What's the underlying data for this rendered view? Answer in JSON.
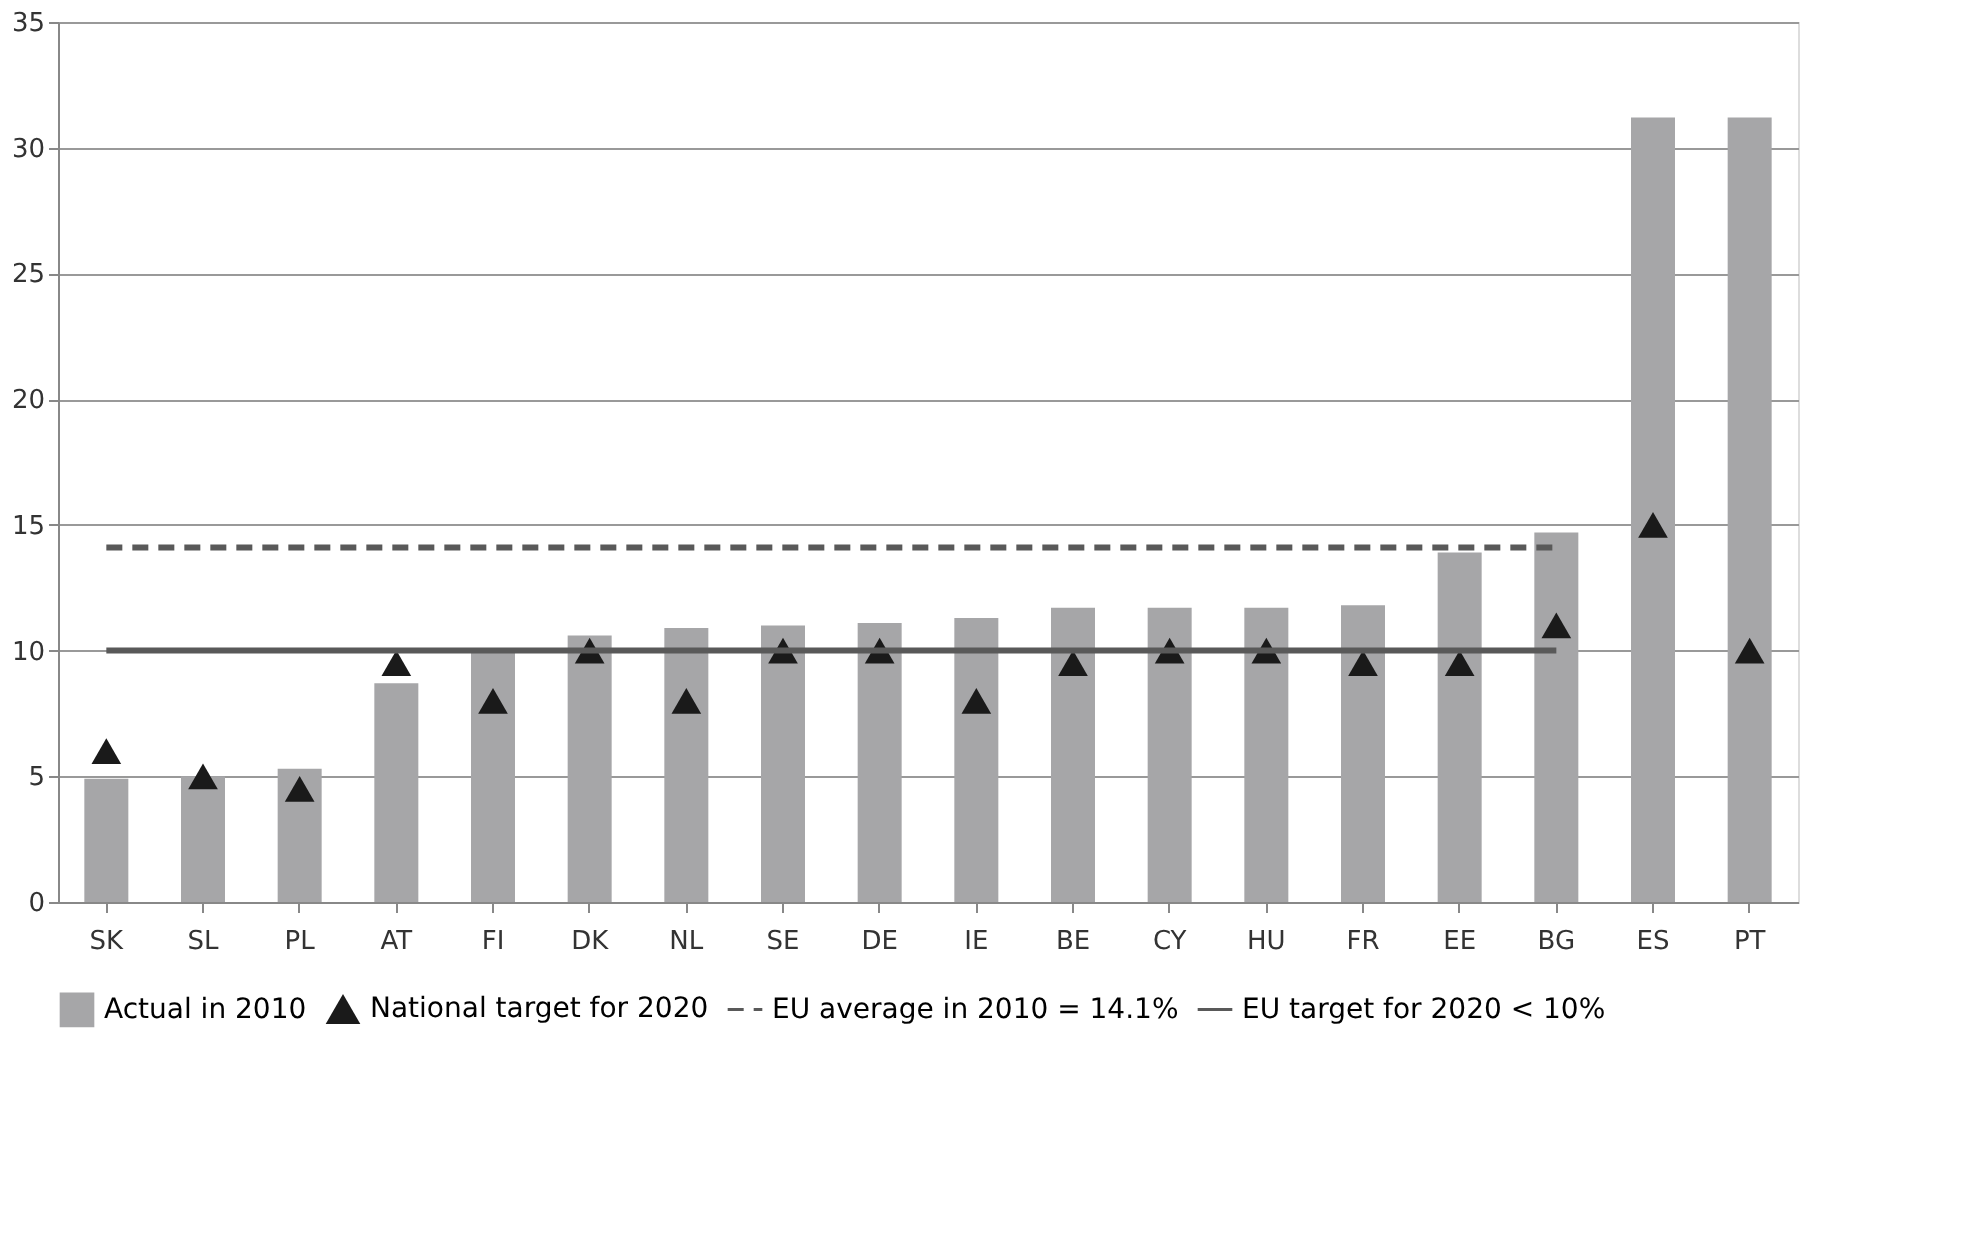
{
  "chart_data": {
    "type": "bar",
    "categories": [
      "SK",
      "SL",
      "PL",
      "AT",
      "FI",
      "DK",
      "NL",
      "SE",
      "DE",
      "IE",
      "BE",
      "CY",
      "HU",
      "FR",
      "EE",
      "BG",
      "ES",
      "PT"
    ],
    "series": [
      {
        "name": "Actual in 2010",
        "type": "bar",
        "color": "#a6a6a8",
        "values": [
          4.9,
          5.0,
          5.3,
          8.7,
          10.0,
          10.6,
          10.9,
          11.0,
          11.1,
          11.3,
          11.7,
          11.7,
          11.7,
          11.8,
          13.9,
          14.7,
          31.2,
          31.2
        ]
      },
      {
        "name": "National target for 2020",
        "type": "scatter",
        "marker": "triangle",
        "color": "#1a1a1a",
        "values": [
          6,
          5,
          4.5,
          9.5,
          8,
          10,
          8,
          10,
          10,
          8,
          9.5,
          10,
          10,
          9.5,
          9.5,
          11,
          15,
          10
        ]
      },
      {
        "name": "EU average in 2010 = 14.1%",
        "type": "line",
        "line_style": "dashed",
        "color": "#595959",
        "values": [
          14.1,
          14.1,
          14.1,
          14.1,
          14.1,
          14.1,
          14.1,
          14.1,
          14.1,
          14.1,
          14.1,
          14.1,
          14.1,
          14.1,
          14.1,
          14.1,
          null,
          null
        ]
      },
      {
        "name": "EU target for 2020 < 10%",
        "type": "line",
        "line_style": "solid",
        "color": "#595959",
        "values": [
          10,
          10,
          10,
          10,
          10,
          10,
          10,
          10,
          10,
          10,
          10,
          10,
          10,
          10,
          10,
          10,
          null,
          null
        ]
      }
    ],
    "ylim": [
      0,
      35
    ],
    "yticks": [
      0,
      5,
      10,
      15,
      20,
      25,
      30,
      35
    ],
    "grid": "y",
    "legend": "bottom"
  }
}
